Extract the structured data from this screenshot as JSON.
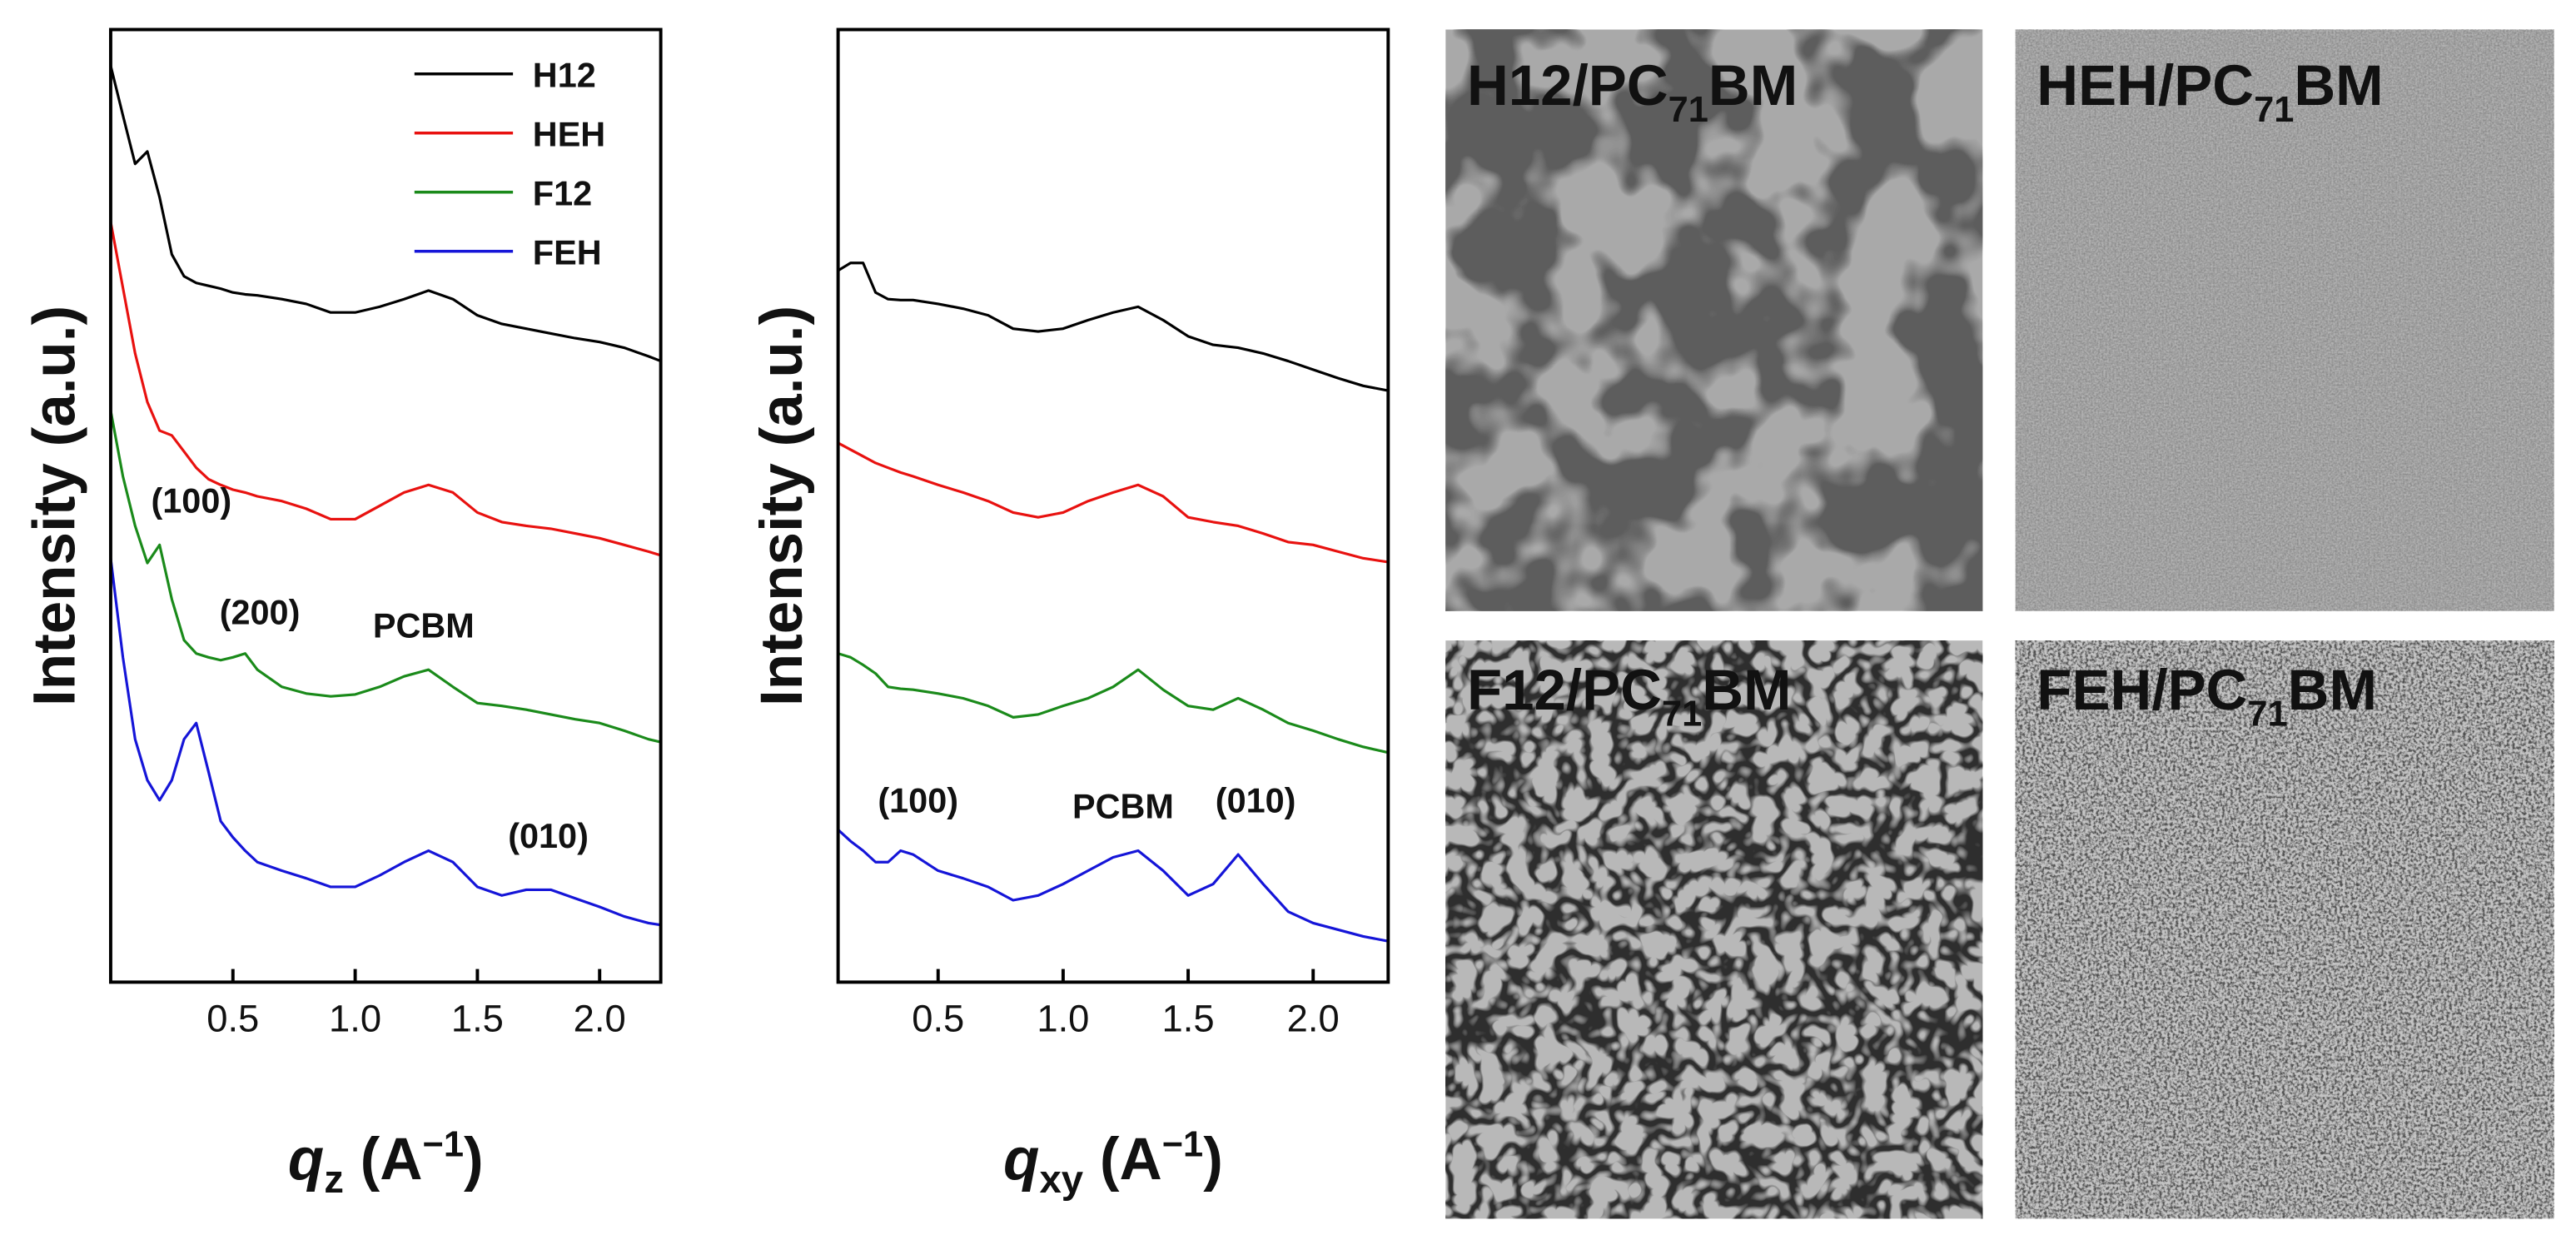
{
  "chart_data": [
    {
      "type": "line",
      "ylabel": "Intensity (a.u.)",
      "xlabel": {
        "symbol": "q",
        "sub": "z",
        "unit": "(A",
        "sup": "−1",
        "close": ")"
      },
      "x": [
        0,
        0.05,
        0.1,
        0.15,
        0.2,
        0.25,
        0.3,
        0.35,
        0.4,
        0.45,
        0.5,
        0.55,
        0.6,
        0.7,
        0.8,
        0.9,
        1.0,
        1.1,
        1.2,
        1.3,
        1.4,
        1.5,
        1.6,
        1.7,
        1.8,
        1.9,
        2.0,
        2.1,
        2.2,
        2.25
      ],
      "series": [
        {
          "name": "H12",
          "color": "#000000",
          "values": [
            96.2,
            91.0,
            85.9,
            87.2,
            82.4,
            76.4,
            74.1,
            73.4,
            73.1,
            72.8,
            72.4,
            72.2,
            72.1,
            71.7,
            71.2,
            70.3,
            70.3,
            70.9,
            71.7,
            72.6,
            71.7,
            70.0,
            69.1,
            68.6,
            68.1,
            67.6,
            67.2,
            66.6,
            65.7,
            65.2
          ]
        },
        {
          "name": "HEH",
          "color": "#e8110f",
          "values": [
            79.8,
            72.9,
            66.0,
            60.9,
            57.9,
            57.4,
            55.7,
            54.0,
            52.8,
            52.2,
            51.7,
            51.4,
            51.0,
            50.5,
            49.7,
            48.6,
            48.6,
            50.0,
            51.4,
            52.2,
            51.4,
            49.3,
            48.3,
            47.9,
            47.6,
            47.1,
            46.6,
            45.9,
            45.2,
            44.8
          ]
        },
        {
          "name": "F12",
          "color": "#1a8a1a",
          "values": [
            60.0,
            53.1,
            47.9,
            44.0,
            45.9,
            40.2,
            35.9,
            34.5,
            34.1,
            33.8,
            34.1,
            34.5,
            32.8,
            31.0,
            30.3,
            30.0,
            30.2,
            31.0,
            32.1,
            32.8,
            31.0,
            29.3,
            29.0,
            28.6,
            28.1,
            27.6,
            27.2,
            26.4,
            25.5,
            25.2
          ]
        },
        {
          "name": "FEH",
          "color": "#1515d8",
          "values": [
            44.5,
            34.1,
            25.5,
            21.2,
            19.1,
            21.2,
            25.5,
            27.2,
            22.1,
            16.9,
            15.2,
            13.8,
            12.6,
            11.7,
            10.9,
            10.0,
            10.0,
            11.2,
            12.6,
            13.8,
            12.6,
            10.0,
            9.1,
            9.7,
            9.7,
            8.8,
            7.9,
            6.9,
            6.2,
            6.0
          ]
        }
      ],
      "xlim": [
        0,
        2.25
      ],
      "xticks": [
        0.5,
        {
          "value": 1,
          "label": "1.0"
        },
        1.5,
        {
          "value": 2,
          "label": "2.0"
        }
      ],
      "ylim": [
        0,
        100
      ],
      "legend": "upper right",
      "annotations": [
        {
          "text": "(100)",
          "x": 0.33,
          "y": 49.3
        },
        {
          "text": "(200)",
          "x": 0.61,
          "y": 37.6
        },
        {
          "text": "PCBM",
          "x": 1.28,
          "y": 36.2
        },
        {
          "text": "(010)",
          "x": 1.79,
          "y": 14.1
        }
      ]
    },
    {
      "type": "line",
      "ylabel": "Intensity (a.u.)",
      "xlabel": {
        "symbol": "q",
        "sub": "xy",
        "unit": "(A",
        "sup": "−1",
        "close": ")"
      },
      "x": [
        0.1,
        0.15,
        0.2,
        0.25,
        0.3,
        0.35,
        0.4,
        0.5,
        0.6,
        0.7,
        0.8,
        0.9,
        1.0,
        1.1,
        1.2,
        1.3,
        1.4,
        1.5,
        1.6,
        1.7,
        1.8,
        1.9,
        2.0,
        2.1,
        2.2,
        2.3
      ],
      "series": [
        {
          "color": "#000000",
          "values": [
            74.7,
            75.5,
            75.5,
            72.4,
            71.7,
            71.6,
            71.6,
            71.2,
            70.7,
            70.0,
            68.6,
            68.3,
            68.6,
            69.5,
            70.3,
            70.9,
            69.5,
            67.8,
            66.9,
            66.6,
            66.0,
            65.2,
            64.3,
            63.4,
            62.6,
            62.1
          ]
        },
        {
          "color": "#e8110f",
          "values": [
            56.6,
            55.9,
            55.2,
            54.5,
            54.0,
            53.5,
            53.1,
            52.2,
            51.4,
            50.5,
            49.3,
            48.8,
            49.3,
            50.5,
            51.4,
            52.2,
            51.0,
            48.8,
            48.3,
            47.9,
            47.1,
            46.2,
            45.9,
            45.2,
            44.5,
            44.1
          ]
        },
        {
          "color": "#1a8a1a",
          "values": [
            34.5,
            34.1,
            33.3,
            32.4,
            31.0,
            30.8,
            30.7,
            30.3,
            29.8,
            29.0,
            27.8,
            28.1,
            29.0,
            29.8,
            31.0,
            32.8,
            30.7,
            29.0,
            28.6,
            29.8,
            28.6,
            27.2,
            26.4,
            25.5,
            24.7,
            24.1
          ]
        },
        {
          "color": "#1515d8",
          "values": [
            16.0,
            14.8,
            13.8,
            12.6,
            12.6,
            13.8,
            13.4,
            11.7,
            10.9,
            10.0,
            8.6,
            9.1,
            10.3,
            11.7,
            13.1,
            13.8,
            11.7,
            9.1,
            10.3,
            13.4,
            10.3,
            7.4,
            6.2,
            5.5,
            4.8,
            4.3
          ]
        }
      ],
      "xlim": [
        0.1,
        2.3
      ],
      "xticks": [
        0.5,
        {
          "value": 1,
          "label": "1.0"
        },
        1.5,
        {
          "value": 2,
          "label": "2.0"
        }
      ],
      "ylim": [
        0,
        100
      ],
      "annotations": [
        {
          "text": "(100)",
          "x": 0.42,
          "y": 17.8
        },
        {
          "text": "PCBM",
          "x": 1.24,
          "y": 17.2
        },
        {
          "text": "(010)",
          "x": 1.77,
          "y": 17.8
        }
      ]
    }
  ],
  "micrographs": [
    {
      "pre": "H12/PC",
      "sub": "71",
      "post": "BM"
    },
    {
      "pre": "HEH/PC",
      "sub": "71",
      "post": "BM"
    },
    {
      "pre": "F12/PC",
      "sub": "71",
      "post": "BM"
    },
    {
      "pre": "FEH/PC",
      "sub": "71",
      "post": "BM"
    }
  ]
}
